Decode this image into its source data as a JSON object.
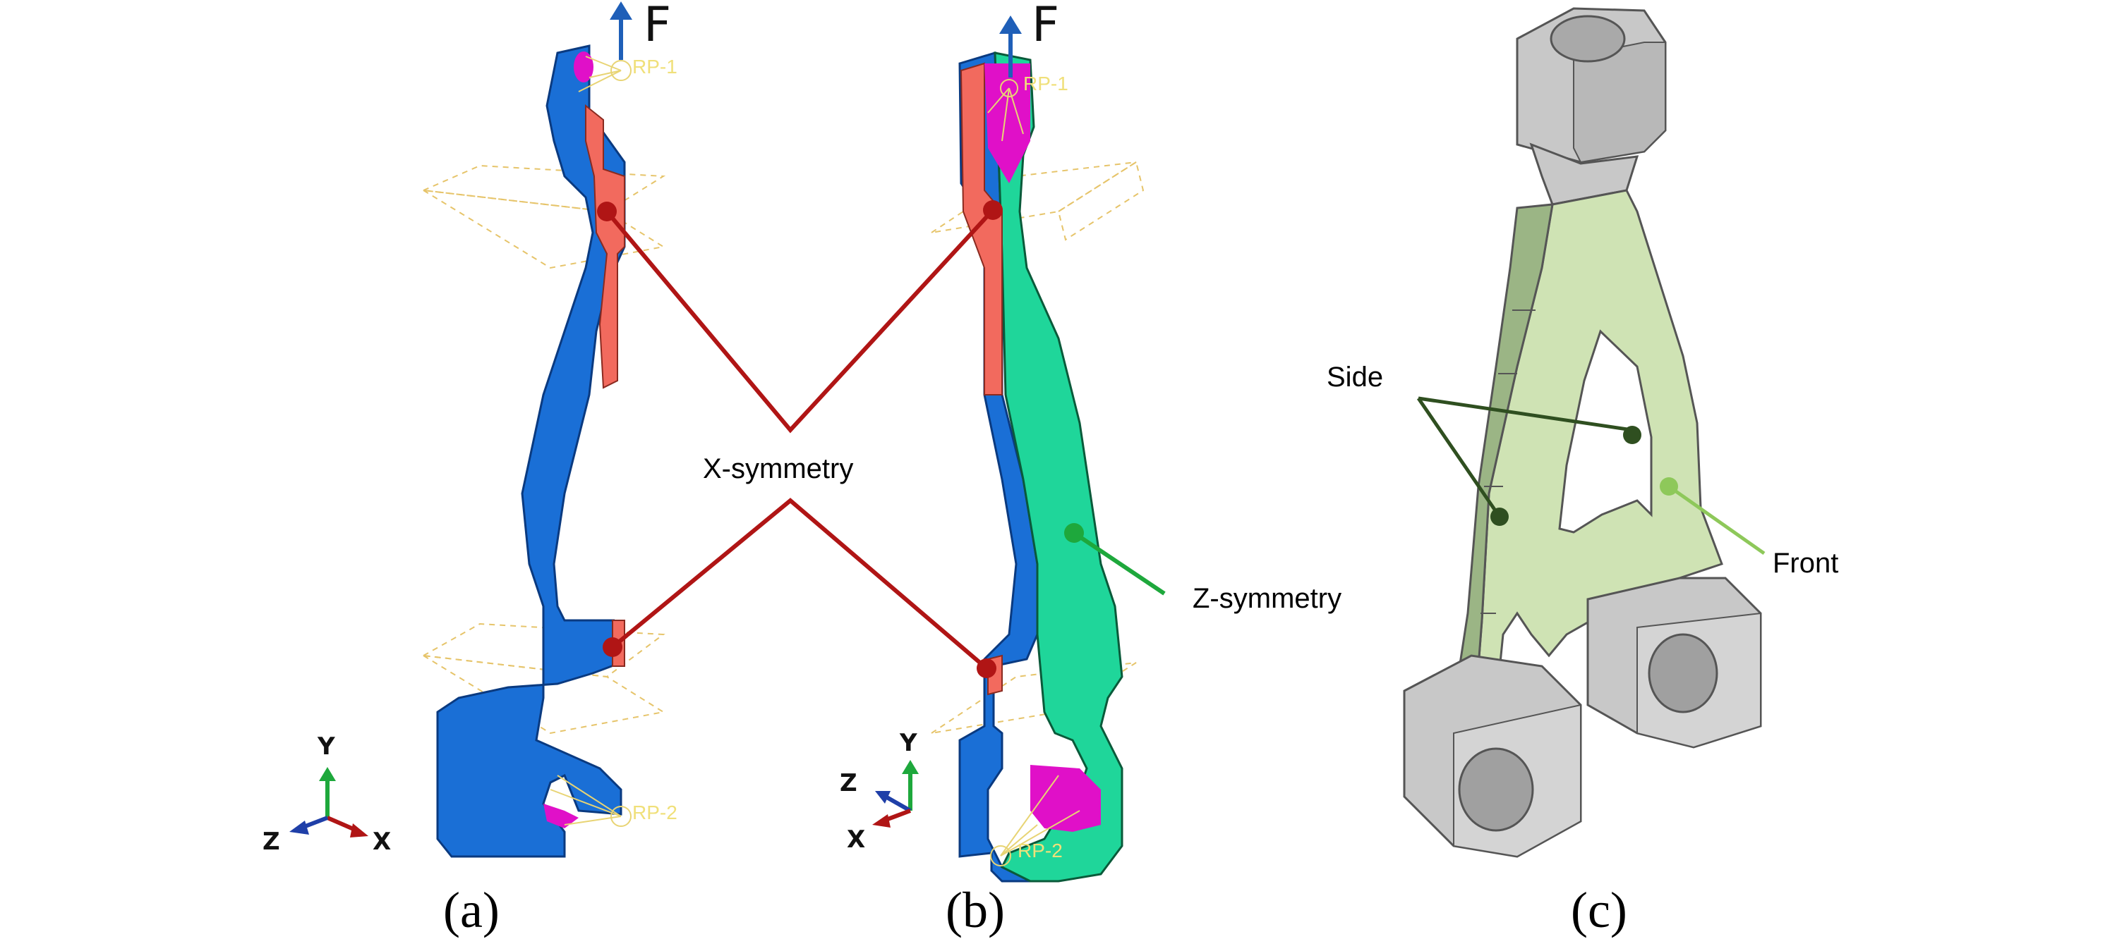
{
  "captions": {
    "a": "(a)",
    "b": "(b)",
    "c": "(c)"
  },
  "force_label": "F",
  "reference_points": {
    "top": "RP-1",
    "bottom": "RP-2"
  },
  "annotations": {
    "x_symmetry": "X-symmetry",
    "z_symmetry": "Z-symmetry",
    "side": "Side",
    "front": "Front"
  },
  "triad_a": {
    "y": "Y",
    "z": "Z",
    "x": "X"
  },
  "triad_b": {
    "y": "Y",
    "z": "Z",
    "x": "X"
  },
  "colors": {
    "part_blue": "#1a6fd6",
    "x_sym_face": "#f26a5e",
    "z_sym_face": "#1fd69a",
    "load_face": "#e010c8",
    "x_sym_line": "#b01515",
    "z_sym_line": "#1ea83c",
    "side_line": "#2f4f20",
    "front_line": "#8ec85a",
    "force_arrow": "#1f5fb8",
    "gray_part": "#c8c8c8",
    "green_face": "#cfe3b4"
  }
}
